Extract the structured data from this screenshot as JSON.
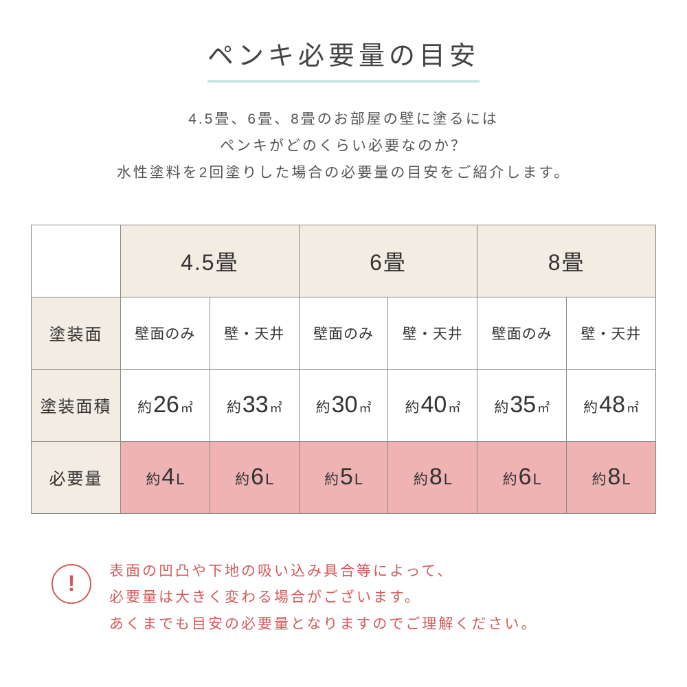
{
  "title": "ペンキ必要量の目安",
  "intro_lines": [
    "4.5畳、6畳、8畳のお部屋の壁に塗るには",
    "ペンキがどのくらい必要なのか？",
    "水性塗料を2回塗りした場合の必要量の目安をご紹介します。"
  ],
  "columns": [
    "4.5畳",
    "6畳",
    "8畳"
  ],
  "rows": {
    "surface": {
      "label": "塗装面",
      "cells": [
        "壁面のみ",
        "壁・天井",
        "壁面のみ",
        "壁・天井",
        "壁面のみ",
        "壁・天井"
      ]
    },
    "area": {
      "label": "塗装面積",
      "cells": [
        {
          "prefix": "約",
          "num": "26",
          "unit": "㎡"
        },
        {
          "prefix": "約",
          "num": "33",
          "unit": "㎡"
        },
        {
          "prefix": "約",
          "num": "30",
          "unit": "㎡"
        },
        {
          "prefix": "約",
          "num": "40",
          "unit": "㎡"
        },
        {
          "prefix": "約",
          "num": "35",
          "unit": "㎡"
        },
        {
          "prefix": "約",
          "num": "48",
          "unit": "㎡"
        }
      ]
    },
    "amount": {
      "label": "必要量",
      "cells": [
        {
          "prefix": "約",
          "num": "4",
          "unit": "L"
        },
        {
          "prefix": "約",
          "num": "6",
          "unit": "L"
        },
        {
          "prefix": "約",
          "num": "5",
          "unit": "L"
        },
        {
          "prefix": "約",
          "num": "8",
          "unit": "L"
        },
        {
          "prefix": "約",
          "num": "6",
          "unit": "L"
        },
        {
          "prefix": "約",
          "num": "8",
          "unit": "L"
        }
      ]
    }
  },
  "note_icon": "!",
  "note_lines": [
    "表面の凹凸や下地の吸い込み具合等によって、",
    "必要量は大きく変わる場合がございます。",
    "あくまでも目安の必要量となりますのでご理解ください。"
  ],
  "colors": {
    "title_underline": "#b8e0de",
    "header_bg": "#f2ece2",
    "highlight_bg": "#efb3b3",
    "note_color": "#d65a5a",
    "border": "#888888",
    "text": "#333333",
    "bg": "#ffffff"
  }
}
